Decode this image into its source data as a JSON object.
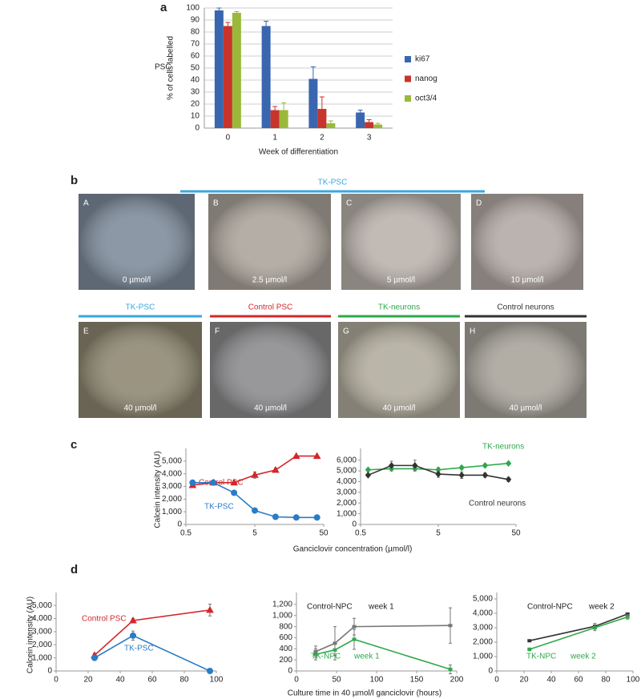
{
  "micrographs": {
    "panel": "b",
    "groups": [
      {
        "label": "TK-PSC",
        "color": "#3aa7dc"
      },
      {
        "label": "TK-PSC",
        "color": "#3aa7dc"
      },
      {
        "label": "Control PSC",
        "color": "#d3272c"
      },
      {
        "label": "TK-neurons",
        "color": "#2ea84a"
      },
      {
        "label": "Control neurons",
        "color": "#333333"
      }
    ],
    "images": [
      {
        "letter": "A",
        "label": "0 µmol/l"
      },
      {
        "letter": "B",
        "label": "2.5 µmol/l"
      },
      {
        "letter": "C",
        "label": "5 µmol/l"
      },
      {
        "letter": "D",
        "label": "10 µmol/l"
      },
      {
        "letter": "E",
        "label": "40 µmol/l"
      },
      {
        "letter": "F",
        "label": "40 µmol/l"
      },
      {
        "letter": "G",
        "label": "40 µmol/l"
      },
      {
        "letter": "H",
        "label": "40 µmol/l"
      }
    ]
  },
  "chart_data": [
    {
      "type": "bar",
      "panel": "a",
      "annotation": "PSC",
      "ylabel": "% of cells labelled",
      "xlabel": "Week of differentiation",
      "categories": [
        "0",
        "1",
        "2",
        "3"
      ],
      "series": [
        {
          "name": "ki67",
          "color": "#3a66b0",
          "values": [
            98,
            85,
            41,
            13
          ],
          "errors": [
            2,
            4,
            10,
            2
          ]
        },
        {
          "name": "nanog",
          "color": "#c8342c",
          "values": [
            85,
            15,
            16,
            5
          ],
          "errors": [
            3,
            3,
            10,
            2
          ]
        },
        {
          "name": "oct3/4",
          "color": "#9ab93a",
          "values": [
            96,
            15,
            4,
            3
          ],
          "errors": [
            1,
            6,
            2,
            1
          ]
        }
      ],
      "ylim": [
        0,
        100
      ],
      "yticks": [
        0,
        10,
        20,
        30,
        40,
        50,
        60,
        70,
        80,
        90,
        100
      ],
      "grid": true,
      "legend": "right"
    },
    {
      "type": "line",
      "panel": "c",
      "ylabel": "Calcein intensity (AU)",
      "xlabel": "Ganciclovir concentration (µmol/l)",
      "log_x": true,
      "grid": false,
      "x": [
        0.625,
        1.25,
        2.5,
        5,
        10,
        20,
        40
      ],
      "series": [
        {
          "name": "Control PSC",
          "color": "#d3272c",
          "marker": "triangle",
          "values": [
            3100,
            3300,
            3300,
            3900,
            4300,
            5400,
            5400
          ],
          "errors": [
            null,
            null,
            null,
            250,
            150,
            null,
            null
          ]
        },
        {
          "name": "TK-PSC",
          "color": "#2a7cc7",
          "marker": "circle",
          "values": [
            3300,
            3300,
            2500,
            1100,
            600,
            550,
            550
          ],
          "errors": [
            null,
            null,
            null,
            null,
            null,
            null,
            null
          ]
        }
      ],
      "xlim": [
        0.5,
        50
      ],
      "xticks": [
        0.5,
        5,
        50
      ],
      "ylim": [
        0,
        5500
      ],
      "yticks": [
        0,
        {
          "value": 1000,
          "label": "1,000"
        },
        {
          "value": 2000,
          "label": "2,000"
        },
        {
          "value": 3000,
          "label": "3,000"
        },
        {
          "value": 4000,
          "label": "4,000"
        },
        {
          "value": 5000,
          "label": "5,000"
        }
      ]
    },
    {
      "type": "line",
      "log_x": true,
      "grid": false,
      "x": [
        0.625,
        1.25,
        2.5,
        5,
        10,
        20,
        40
      ],
      "series": [
        {
          "name": "TK-neurons",
          "color": "#2ea84a",
          "marker": "diamond",
          "values": [
            5100,
            5200,
            5200,
            5100,
            5300,
            5500,
            5700
          ],
          "errors": [
            null,
            200,
            200,
            200,
            150,
            150,
            null
          ]
        },
        {
          "name": "Control neurons",
          "color": "#333333",
          "marker": "diamond",
          "values": [
            4600,
            5500,
            5500,
            4700,
            4600,
            4600,
            4200
          ],
          "errors": [
            null,
            400,
            500,
            300,
            300,
            200,
            200
          ]
        }
      ],
      "xlim": [
        0.5,
        50
      ],
      "xticks": [
        0.5,
        5,
        50
      ],
      "ylim": [
        0,
        6500
      ],
      "yticks": [
        0,
        {
          "value": 1000,
          "label": "1,000"
        },
        {
          "value": 2000,
          "label": "2,000"
        },
        {
          "value": 3000,
          "label": "3,000"
        },
        {
          "value": 4000,
          "label": "4,000"
        },
        {
          "value": 5000,
          "label": "5,000"
        },
        {
          "value": 6000,
          "label": "6,000"
        }
      ]
    },
    {
      "type": "line",
      "panel": "d",
      "ylabel": "Calcein intensity (AU)",
      "grid": false,
      "x": [
        24,
        48,
        96
      ],
      "series": [
        {
          "name": "Control PSC",
          "color": "#d3272c",
          "marker": "triangle",
          "values": [
            1200,
            3850,
            4650
          ],
          "errors": [
            150,
            150,
            450
          ]
        },
        {
          "name": "TK-PSC",
          "color": "#2a7cc7",
          "marker": "circle",
          "values": [
            1000,
            2700,
            0
          ],
          "errors": [
            150,
            350,
            null
          ]
        }
      ],
      "xlim": [
        0,
        100
      ],
      "xticks": [
        0,
        20,
        40,
        60,
        80,
        100
      ],
      "ylim": [
        0,
        5500
      ],
      "yticks": [
        0,
        {
          "value": 1000,
          "label": "1,000"
        },
        {
          "value": 2000,
          "label": "2,000"
        },
        {
          "value": 3000,
          "label": "3,000"
        },
        {
          "value": 4000,
          "label": "4,000"
        },
        {
          "value": 5000,
          "label": "5,000"
        }
      ]
    },
    {
      "type": "line",
      "xlabel": "Culture time in 40 µmol/l ganciclovir (hours)",
      "grid": false,
      "x": [
        24,
        48,
        72,
        192
      ],
      "series": [
        {
          "name": "Control-NPC",
          "note": "week 1",
          "color": "#777777",
          "marker": "dash",
          "values": [
            350,
            500,
            800,
            820
          ],
          "errors": [
            100,
            300,
            150,
            320
          ]
        },
        {
          "name": "TK-NPC",
          "note": "week 1",
          "color": "#2ea84a",
          "marker": "dash",
          "values": [
            300,
            380,
            570,
            30
          ],
          "errors": [
            100,
            100,
            180,
            80
          ]
        }
      ],
      "xlim": [
        0,
        200
      ],
      "xticks": [
        0,
        50,
        100,
        150,
        200
      ],
      "ylim": [
        0,
        1300
      ],
      "yticks": [
        0,
        200,
        400,
        600,
        800,
        {
          "value": 1000,
          "label": "1,000"
        },
        {
          "value": 1200,
          "label": "1,200"
        }
      ]
    },
    {
      "type": "line",
      "grid": false,
      "x": [
        24,
        72,
        96
      ],
      "series": [
        {
          "name": "Control-NPC",
          "note": "week 2",
          "color": "#333333",
          "marker": "dash",
          "values": [
            2100,
            3100,
            3950
          ],
          "errors": [
            null,
            200,
            null
          ]
        },
        {
          "name": "TK-NPC",
          "note": "week 2",
          "color": "#2ea84a",
          "marker": "dash",
          "values": [
            1500,
            3000,
            3750
          ],
          "errors": [
            100,
            200,
            150
          ]
        }
      ],
      "xlim": [
        0,
        100
      ],
      "xticks": [
        0,
        20,
        40,
        60,
        80,
        100
      ],
      "ylim": [
        0,
        5000
      ],
      "yticks": [
        0,
        {
          "value": 1000,
          "label": "1,000"
        },
        {
          "value": 2000,
          "label": "2,000"
        },
        {
          "value": 3000,
          "label": "3,000"
        },
        {
          "value": 4000,
          "label": "4,000"
        },
        {
          "value": 5000,
          "label": "5,000"
        }
      ]
    }
  ]
}
